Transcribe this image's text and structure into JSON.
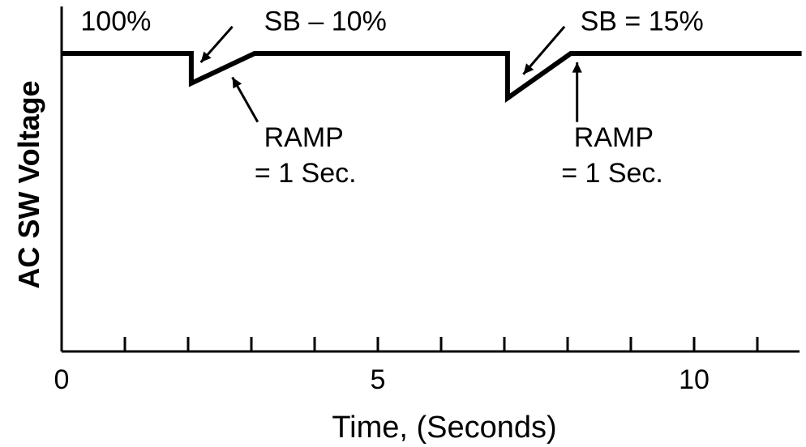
{
  "chart_data": {
    "type": "line",
    "title": "",
    "xlabel": "Time, (Seconds)",
    "ylabel": "AC SW Voltage",
    "xlim": [
      0,
      11.7
    ],
    "ylim": [
      0,
      100
    ],
    "grid": false,
    "x_ticks": [
      0,
      1,
      2,
      3,
      4,
      5,
      6,
      7,
      8,
      9,
      10,
      11
    ],
    "x_tick_labels": [
      {
        "x": 0,
        "text": "0"
      },
      {
        "x": 5,
        "text": "5"
      },
      {
        "x": 10,
        "text": "10"
      }
    ],
    "series": [
      {
        "x": [
          0,
          2.05,
          2.05,
          3.05,
          7.05,
          7.05,
          8.05,
          11.7
        ],
        "y": [
          100,
          100,
          90,
          100,
          100,
          85,
          100,
          100
        ]
      }
    ],
    "annotations": [
      {
        "text": "100%",
        "x": 0.3,
        "y": 111
      },
      {
        "text": "SB – 10%",
        "x": 3.2,
        "y": 111
      },
      {
        "text": "SB = 15%",
        "x": 8.2,
        "y": 111
      },
      {
        "text": "RAMP",
        "x": 3.2,
        "y": 72
      },
      {
        "text": "= 1 Sec.",
        "x": 3.05,
        "y": 60
      },
      {
        "text": "RAMP",
        "x": 8.1,
        "y": 72
      },
      {
        "text": "= 1 Sec.",
        "x": 7.9,
        "y": 60
      }
    ],
    "arrows": [
      {
        "from": [
          2.7,
          109
        ],
        "to": [
          2.2,
          97
        ]
      },
      {
        "from": [
          3.1,
          77
        ],
        "to": [
          2.7,
          92
        ]
      },
      {
        "from": [
          7.95,
          109
        ],
        "to": [
          7.3,
          93
        ]
      },
      {
        "from": [
          8.15,
          77
        ],
        "to": [
          8.15,
          97
        ]
      }
    ]
  }
}
